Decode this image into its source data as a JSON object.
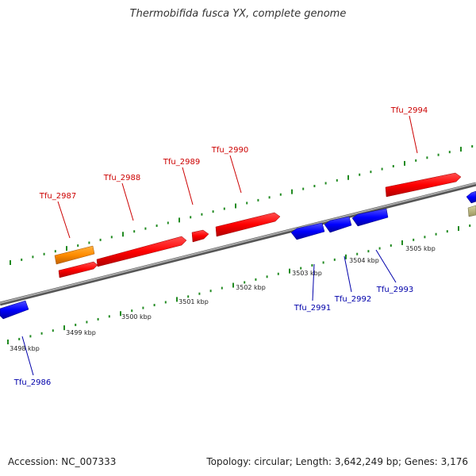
{
  "header": {
    "title": "Thermobifida fusca YX, complete genome"
  },
  "footer": {
    "accession": "Accession: NC_007333",
    "summary": "Topology: circular; Length: 3,642,249 bp; Genes: 3,176"
  },
  "colors": {
    "forward_gene": "#ff0000",
    "reverse_gene": "#0000ff",
    "highlight_gene": "#ff8c00",
    "other_gene": "#b5b07a",
    "forward_label": "#cc0000",
    "reverse_label": "#0000aa",
    "tick": "#228b22",
    "backbone": "#888888"
  },
  "scale_labels": [
    "3498 kbp",
    "3499 kbp",
    "3500 kbp",
    "3501 kbp",
    "3502 kbp",
    "3503 kbp",
    "3504 kbp",
    "3505 kbp"
  ],
  "forward_gene_labels": [
    "Tfu_2987",
    "Tfu_2988",
    "Tfu_2989",
    "Tfu_2990",
    "Tfu_2994"
  ],
  "reverse_gene_labels": [
    "Tfu_2986",
    "Tfu_2991",
    "Tfu_2992",
    "Tfu_2993"
  ]
}
